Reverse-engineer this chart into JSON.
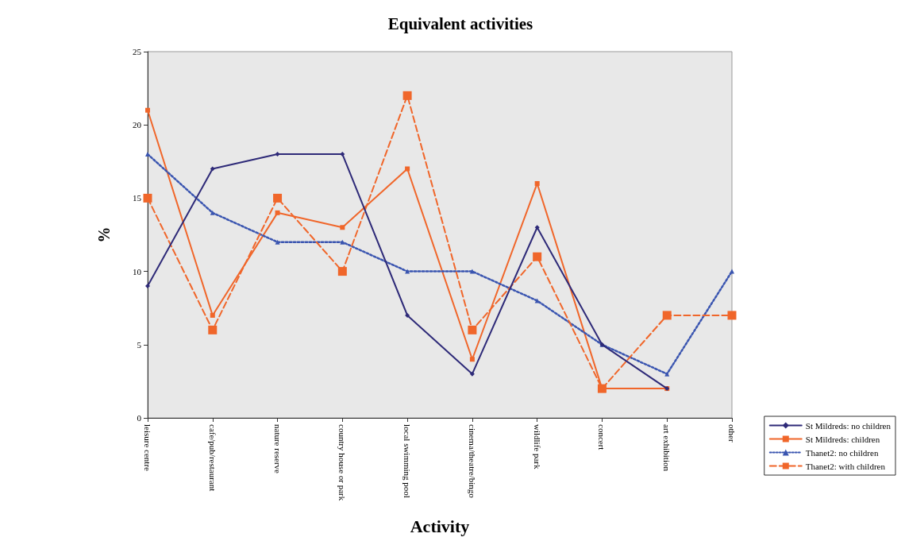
{
  "chart_data": {
    "type": "line",
    "title": "Equivalent activities",
    "xlabel": "Activity",
    "ylabel": "%",
    "categories": [
      "leisure centre",
      "cafe/pub/restaurant",
      "nature reserve",
      "country house or park",
      "local swimming pool",
      "cinema/theatre/bingo",
      "wildlife park",
      "concert",
      "art exhibition",
      "other"
    ],
    "series": [
      {
        "name": "St Mildreds: no children",
        "color": "#2e2a78",
        "marker": "diamond",
        "line_style": "solid",
        "values": [
          9,
          17,
          18,
          18,
          7,
          3,
          13,
          5,
          2,
          null
        ]
      },
      {
        "name": "St Mildreds: children",
        "color": "#f0662a",
        "marker": "square",
        "line_style": "solid",
        "values": [
          21,
          7,
          14,
          13,
          17,
          4,
          16,
          2,
          2,
          null
        ]
      },
      {
        "name": "Thanet2: no children",
        "color": "#3a55b0",
        "marker": "triangle",
        "line_style": "dotted",
        "values": [
          18,
          14,
          12,
          12,
          10,
          10,
          8,
          5,
          3,
          10
        ]
      },
      {
        "name": "Thanet2: with children",
        "color": "#f0662a",
        "marker": "square",
        "line_style": "dashed",
        "values": [
          15,
          6,
          15,
          10,
          22,
          6,
          11,
          2,
          7,
          7
        ]
      }
    ],
    "ylim": [
      0,
      25
    ],
    "yticks": [
      0,
      5,
      10,
      15,
      20,
      25
    ],
    "grid": false,
    "legend": "bottom right"
  }
}
